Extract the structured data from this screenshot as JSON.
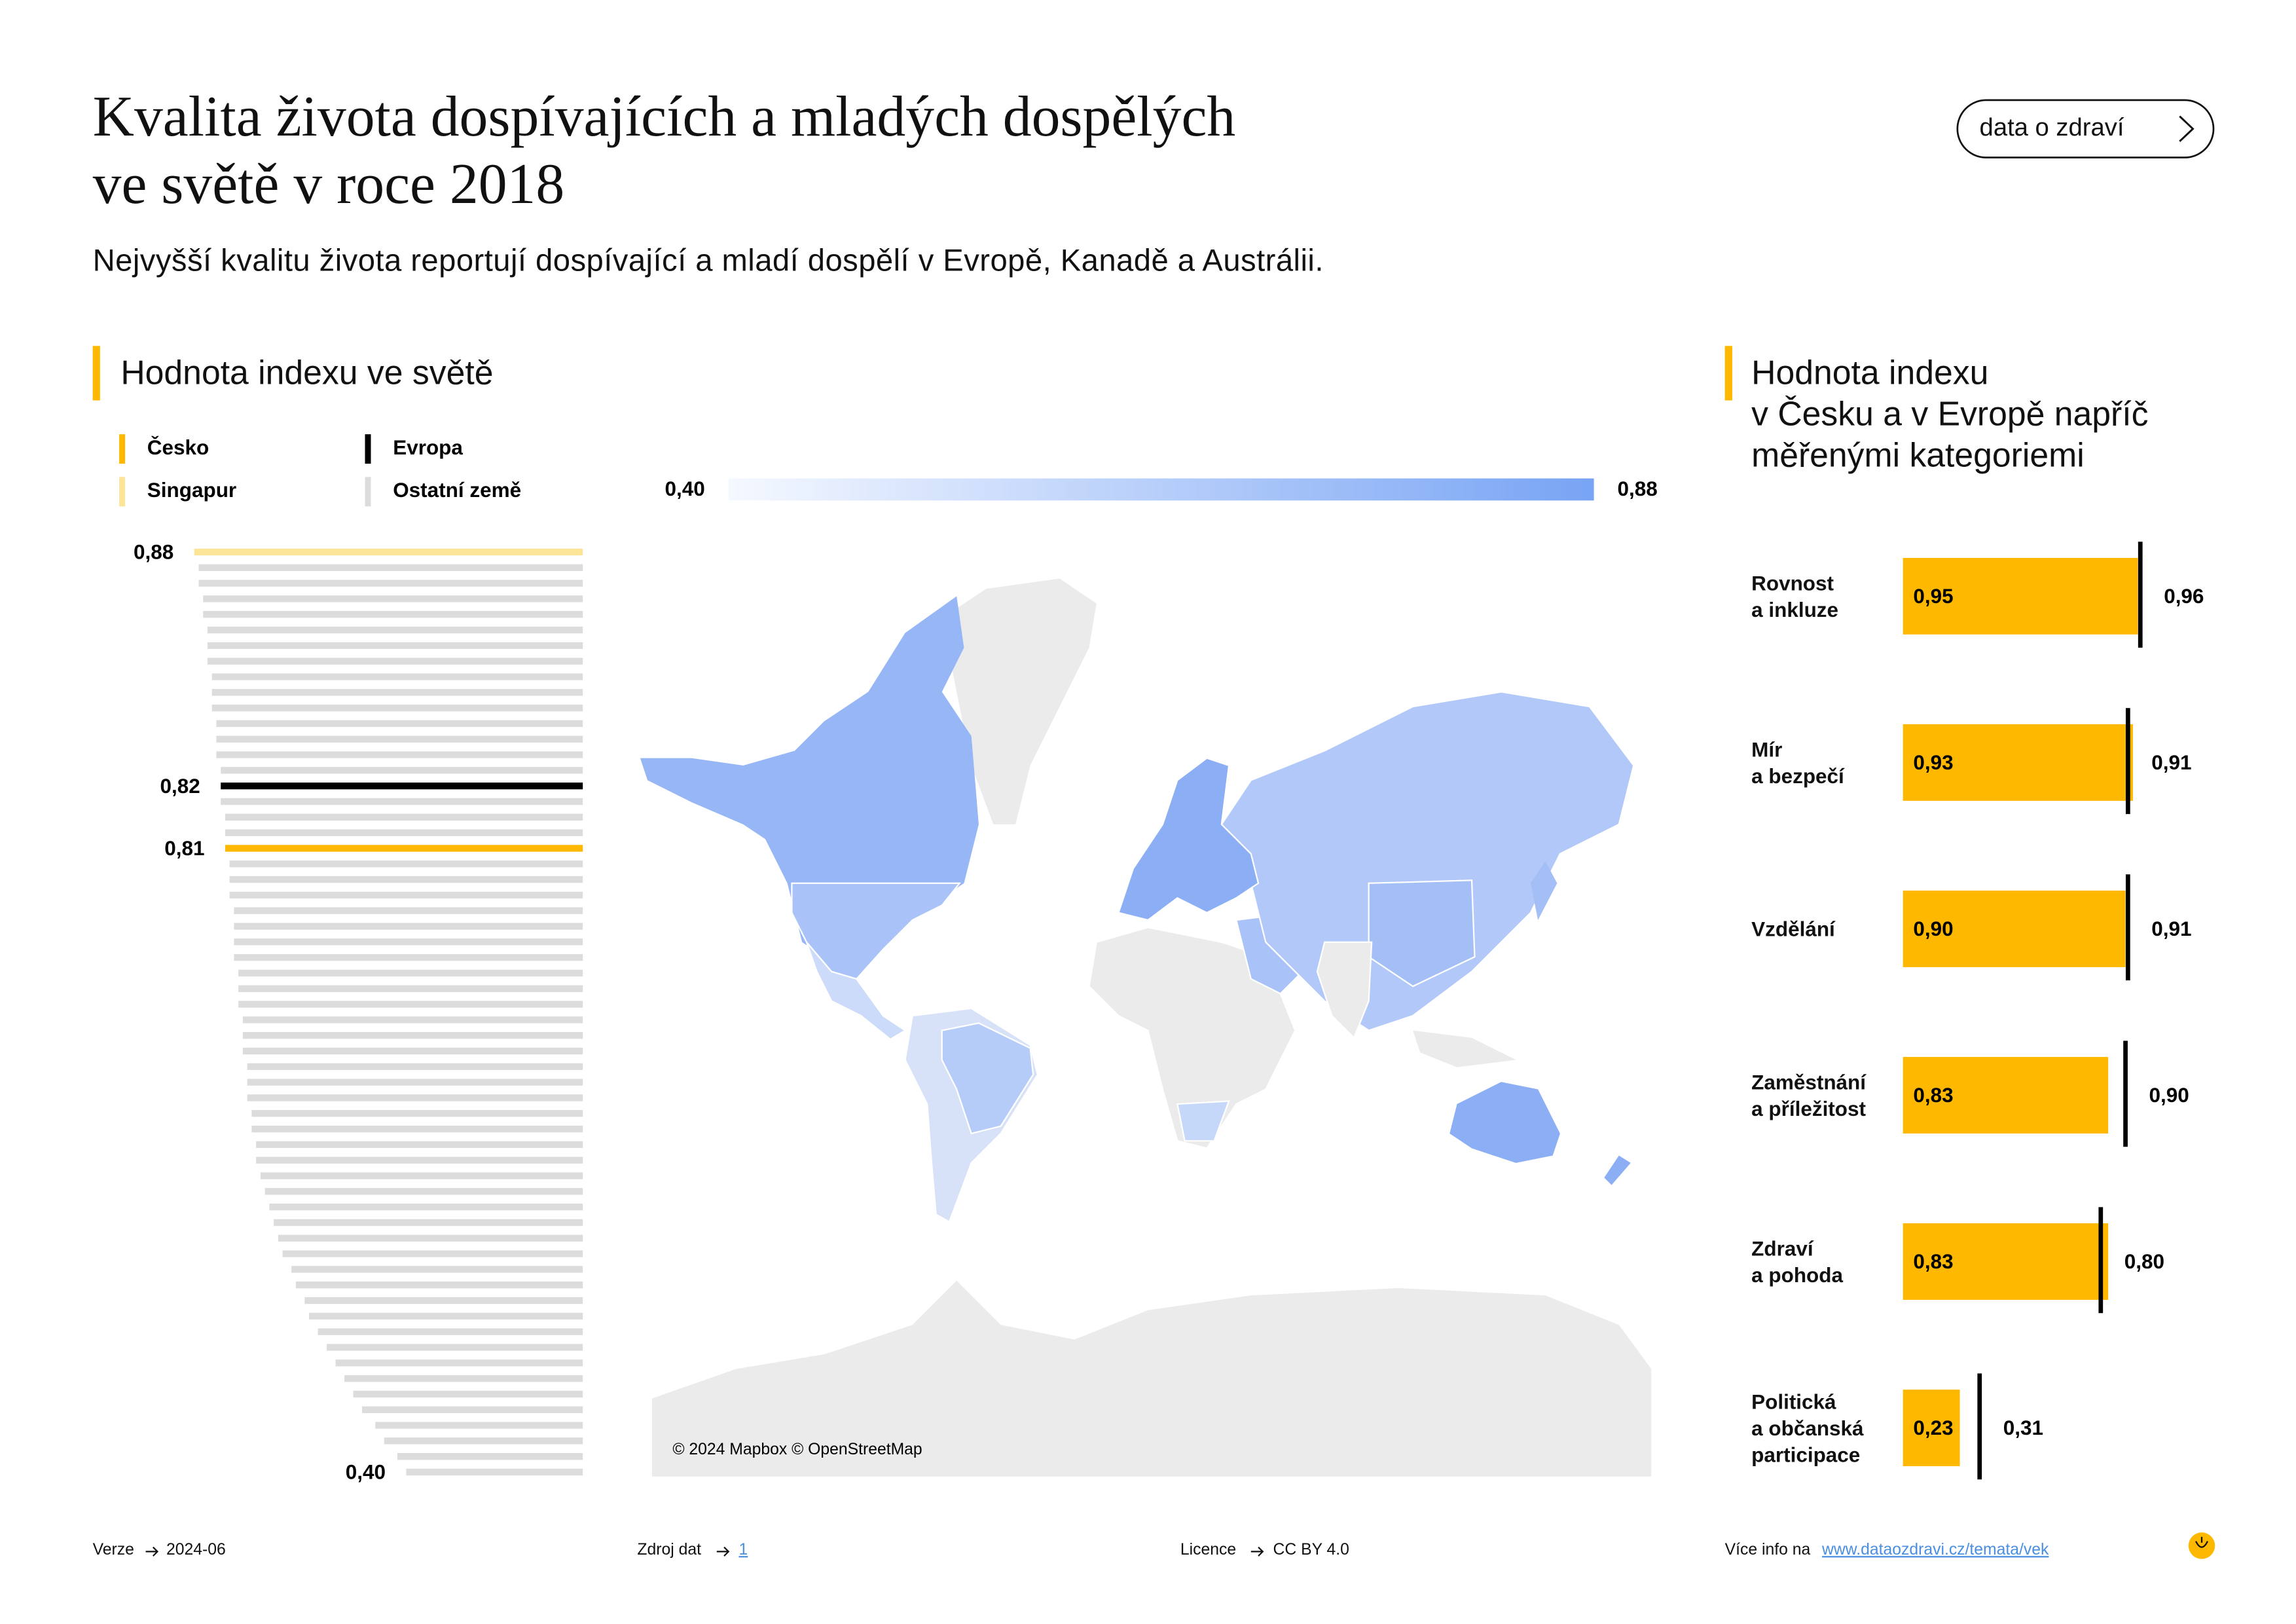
{
  "header": {
    "title": "Kvalita života dospívajících a mladých dospělých\nve světě v roce 2018",
    "subtitle": "Nejvyšší kvalitu života reportují dospívající a mladí dospělí v Evropě, Kanadě a Austrálii.",
    "button": "data o zdraví"
  },
  "chart_data": [
    {
      "type": "bar",
      "title": "Hodnota indexu ve světě",
      "xlim": [
        0,
        1
      ],
      "series": [
        {
          "name": "Česko",
          "color": "#ffb800",
          "values": [
            null,
            null,
            null,
            null,
            null,
            null,
            null,
            null,
            null,
            null,
            null,
            null,
            null,
            null,
            null,
            null,
            null,
            null,
            null,
            0.81,
            null,
            null,
            null,
            null,
            null,
            null,
            null,
            null,
            null,
            null,
            null,
            null,
            null,
            null,
            null,
            null,
            null,
            null,
            null,
            null,
            null,
            null,
            null,
            null,
            null,
            null,
            null,
            null,
            null,
            null,
            null,
            null,
            null,
            null,
            null,
            null,
            null,
            null,
            null,
            null
          ],
          "value_labels": [
            null,
            null,
            null,
            null,
            null,
            null,
            null,
            null,
            null,
            null,
            null,
            null,
            null,
            null,
            null,
            null,
            null,
            null,
            null,
            "0,81",
            null,
            null,
            null,
            null,
            null,
            null,
            null,
            null,
            null,
            null,
            null,
            null,
            null,
            null,
            null,
            null,
            null,
            null,
            null,
            null,
            null,
            null,
            null,
            null,
            null,
            null,
            null,
            null,
            null,
            null,
            null,
            null,
            null,
            null,
            null,
            null,
            null,
            null,
            null,
            null
          ]
        },
        {
          "name": "Evropa",
          "color": "#000000",
          "values": [
            null,
            null,
            null,
            null,
            null,
            null,
            null,
            null,
            null,
            null,
            null,
            null,
            null,
            null,
            null,
            0.82,
            null,
            null,
            null,
            null,
            null,
            null,
            null,
            null,
            null,
            null,
            null,
            null,
            null,
            null,
            null,
            null,
            null,
            null,
            null,
            null,
            null,
            null,
            null,
            null,
            null,
            null,
            null,
            null,
            null,
            null,
            null,
            null,
            null,
            null,
            null,
            null,
            null,
            null,
            null,
            null,
            null,
            null,
            null,
            null
          ],
          "value_labels": [
            null,
            null,
            null,
            null,
            null,
            null,
            null,
            null,
            null,
            null,
            null,
            null,
            null,
            null,
            null,
            "0,82",
            null,
            null,
            null,
            null,
            null,
            null,
            null,
            null,
            null,
            null,
            null,
            null,
            null,
            null,
            null,
            null,
            null,
            null,
            null,
            null,
            null,
            null,
            null,
            null,
            null,
            null,
            null,
            null,
            null,
            null,
            null,
            null,
            null,
            null,
            null,
            null,
            null,
            null,
            null,
            null,
            null,
            null,
            null,
            null
          ]
        },
        {
          "name": "Singapur",
          "color": "#fde598",
          "values": [
            0.88,
            null,
            null,
            null,
            null,
            null,
            null,
            null,
            null,
            null,
            null,
            null,
            null,
            null,
            null,
            null,
            null,
            null,
            null,
            null,
            null,
            null,
            null,
            null,
            null,
            null,
            null,
            null,
            null,
            null,
            null,
            null,
            null,
            null,
            null,
            null,
            null,
            null,
            null,
            null,
            null,
            null,
            null,
            null,
            null,
            null,
            null,
            null,
            null,
            null,
            null,
            null,
            null,
            null,
            null,
            null,
            null,
            null,
            null,
            null
          ],
          "value_labels": [
            "0,88",
            null,
            null,
            null,
            null,
            null,
            null,
            null,
            null,
            null,
            null,
            null,
            null,
            null,
            null,
            null,
            null,
            null,
            null,
            null,
            null,
            null,
            null,
            null,
            null,
            null,
            null,
            null,
            null,
            null,
            null,
            null,
            null,
            null,
            null,
            null,
            null,
            null,
            null,
            null,
            null,
            null,
            null,
            null,
            null,
            null,
            null,
            null,
            null,
            null,
            null,
            null,
            null,
            null,
            null,
            null,
            null,
            null,
            null,
            null
          ]
        },
        {
          "name": "Ostatní země",
          "color": "#dcdcdc",
          "values": [
            null,
            0.87,
            0.87,
            0.86,
            0.86,
            0.85,
            0.85,
            0.85,
            0.84,
            0.84,
            0.84,
            0.83,
            0.83,
            0.83,
            0.82,
            null,
            0.82,
            0.81,
            0.81,
            null,
            0.8,
            0.8,
            0.8,
            0.79,
            0.79,
            0.79,
            0.79,
            0.78,
            0.78,
            0.78,
            0.77,
            0.77,
            0.77,
            0.76,
            0.76,
            0.76,
            0.75,
            0.75,
            0.74,
            0.74,
            0.73,
            0.72,
            0.71,
            0.7,
            0.69,
            0.68,
            0.66,
            0.65,
            0.63,
            0.62,
            0.6,
            0.58,
            0.56,
            0.54,
            0.52,
            0.5,
            0.47,
            0.45,
            0.42,
            0.4
          ],
          "value_labels": [
            null,
            null,
            null,
            null,
            null,
            null,
            null,
            null,
            null,
            null,
            null,
            null,
            null,
            null,
            null,
            null,
            null,
            null,
            null,
            null,
            null,
            null,
            null,
            null,
            null,
            null,
            null,
            null,
            null,
            null,
            null,
            null,
            null,
            null,
            null,
            null,
            null,
            null,
            null,
            null,
            null,
            null,
            null,
            null,
            null,
            null,
            null,
            null,
            null,
            null,
            null,
            null,
            null,
            null,
            null,
            null,
            null,
            null,
            null,
            "0,40"
          ]
        }
      ]
    },
    {
      "type": "map",
      "attribution": "© 2024 Mapbox © OpenStreetMap",
      "colorbar": {
        "range": [
          0.4,
          0.88
        ],
        "colors": [
          "#f5f8ff",
          "#78a4f4"
        ],
        "ticks": [
          {
            "value": 0.4,
            "label": "0,40"
          },
          {
            "value": 0.88,
            "label": "0,88"
          }
        ]
      }
    },
    {
      "type": "bullet",
      "title": "Hodnota indexu\nv Česku a v Evropě napříč\nměřenými kategoriemi",
      "xlim": [
        0,
        1
      ],
      "categories": [
        "Rovnost\na inkluze",
        "Mír\na bezpečí",
        "Vzdělání",
        "Zaměstnání\na příležitost",
        "Zdraví\na pohoda",
        "Politická\na občanská\nparticipace"
      ],
      "series": [
        {
          "color": "#ffb800",
          "values": [
            0.95,
            0.93,
            0.9,
            0.83,
            0.83,
            0.23
          ],
          "value_labels": [
            "0,95",
            "0,93",
            "0,90",
            "0,83",
            "0,83",
            "0,23"
          ]
        },
        {
          "color": "#000000",
          "values": [
            0.96,
            0.91,
            0.91,
            0.9,
            0.8,
            0.31
          ],
          "value_labels": [
            "0,96",
            "0,91",
            "0,91",
            "0,90",
            "0,80",
            "0,31"
          ]
        }
      ]
    }
  ],
  "footer": {
    "version_label": "Verze",
    "version": "2024-06",
    "source_label": "Zdroj dat",
    "source": "1",
    "license_label": "Licence",
    "license": "CC BY 4.0",
    "info_label": "Více info na",
    "info_link": "www.dataozdravi.cz/temata/vek"
  }
}
